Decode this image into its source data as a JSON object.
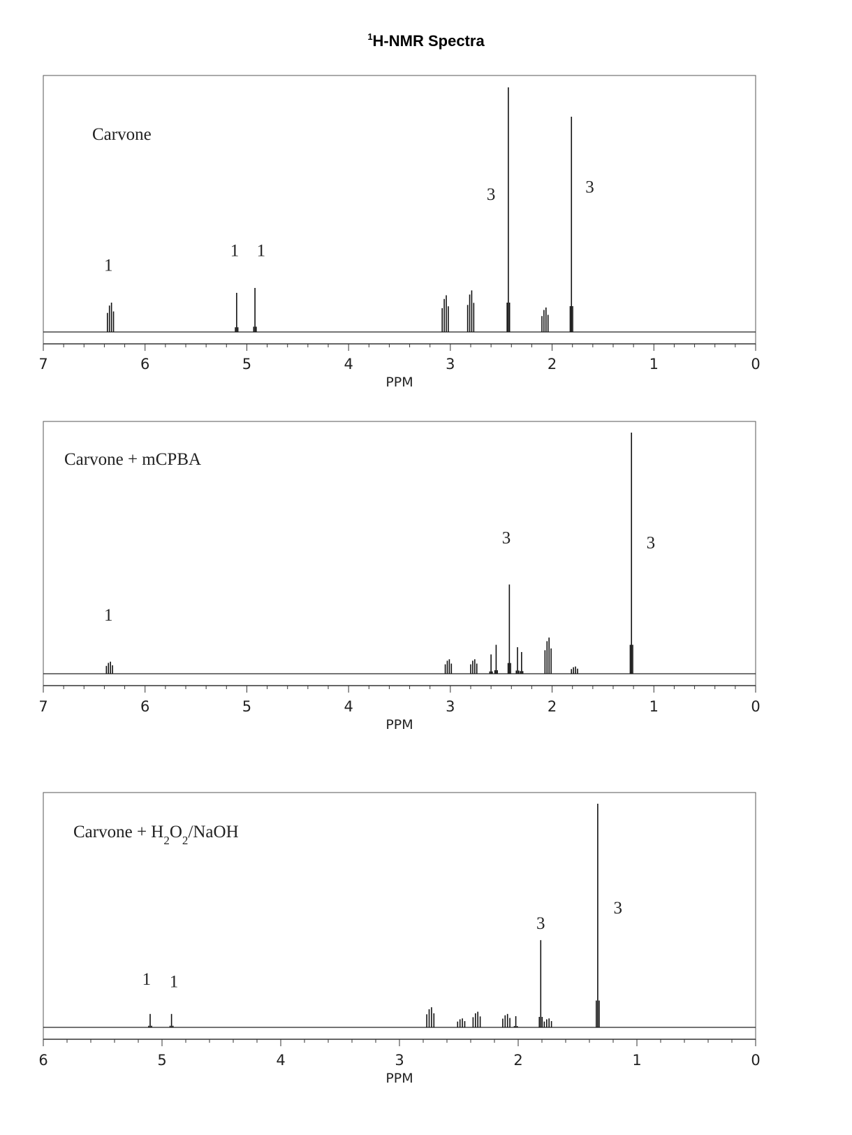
{
  "title": {
    "sup": "1",
    "main": "H-NMR Spectra"
  },
  "chart_data": [
    {
      "type": "line",
      "label": "Carvone",
      "label_subs": [],
      "xlabel": "PPM",
      "xlim": [
        7,
        0
      ],
      "ticks": [
        "7",
        "6",
        "5",
        "4",
        "3",
        "2",
        "1",
        "0"
      ],
      "tick_values": [
        7,
        6,
        5,
        4,
        3,
        2,
        1,
        0
      ],
      "peaks": [
        {
          "ppm": 6.34,
          "height": 0.12,
          "type": "m"
        },
        {
          "ppm": 5.1,
          "height": 0.16,
          "type": "s"
        },
        {
          "ppm": 4.92,
          "height": 0.18,
          "type": "s"
        },
        {
          "ppm": 3.05,
          "height": 0.15,
          "type": "m"
        },
        {
          "ppm": 2.8,
          "height": 0.17,
          "type": "m"
        },
        {
          "ppm": 2.43,
          "height": 1.0,
          "type": "s"
        },
        {
          "ppm": 2.07,
          "height": 0.1,
          "type": "m"
        },
        {
          "ppm": 1.81,
          "height": 0.88,
          "type": "s"
        }
      ],
      "integrations": [
        {
          "ppm": 6.36,
          "level": 0.25,
          "text": "1"
        },
        {
          "ppm": 5.12,
          "level": 0.31,
          "text": "1"
        },
        {
          "ppm": 4.86,
          "level": 0.31,
          "text": "1"
        },
        {
          "ppm": 2.6,
          "level": 0.54,
          "text": "3"
        },
        {
          "ppm": 1.63,
          "level": 0.57,
          "text": "3"
        }
      ]
    },
    {
      "type": "line",
      "label": "Carvone + mCPBA",
      "label_subs": [],
      "xlabel": "PPM",
      "xlim": [
        7,
        0
      ],
      "ticks": [
        "7",
        "6",
        "5",
        "4",
        "3",
        "2",
        "1",
        "0"
      ],
      "tick_values": [
        7,
        6,
        5,
        4,
        3,
        2,
        1,
        0
      ],
      "peaks": [
        {
          "ppm": 6.35,
          "height": 0.05,
          "type": "m"
        },
        {
          "ppm": 3.02,
          "height": 0.06,
          "type": "m"
        },
        {
          "ppm": 2.77,
          "height": 0.06,
          "type": "m"
        },
        {
          "ppm": 2.6,
          "height": 0.08,
          "type": "s"
        },
        {
          "ppm": 2.55,
          "height": 0.12,
          "type": "s"
        },
        {
          "ppm": 2.42,
          "height": 0.37,
          "type": "s"
        },
        {
          "ppm": 2.34,
          "height": 0.11,
          "type": "s"
        },
        {
          "ppm": 2.3,
          "height": 0.09,
          "type": "s"
        },
        {
          "ppm": 2.04,
          "height": 0.15,
          "type": "m"
        },
        {
          "ppm": 1.78,
          "height": 0.03,
          "type": "m"
        },
        {
          "ppm": 1.22,
          "height": 1.0,
          "type": "s"
        }
      ],
      "integrations": [
        {
          "ppm": 6.36,
          "level": 0.22,
          "text": "1"
        },
        {
          "ppm": 2.45,
          "level": 0.54,
          "text": "3"
        },
        {
          "ppm": 1.03,
          "level": 0.52,
          "text": "3"
        }
      ]
    },
    {
      "type": "line",
      "label": "Carvone + H2O2/NaOH",
      "label_parts": [
        {
          "t": "Carvone + H",
          "sub": false
        },
        {
          "t": "2",
          "sub": true
        },
        {
          "t": "O",
          "sub": false
        },
        {
          "t": "2",
          "sub": true
        },
        {
          "t": "/NaOH",
          "sub": false
        }
      ],
      "xlabel": "PPM",
      "xlim": [
        6,
        0
      ],
      "ticks": [
        "6",
        "5",
        "4",
        "3",
        "2",
        "1",
        "0"
      ],
      "tick_values": [
        6,
        5,
        4,
        3,
        2,
        1,
        0
      ],
      "peaks": [
        {
          "ppm": 5.1,
          "height": 0.06,
          "type": "s"
        },
        {
          "ppm": 4.92,
          "height": 0.06,
          "type": "s"
        },
        {
          "ppm": 2.74,
          "height": 0.09,
          "type": "m"
        },
        {
          "ppm": 2.48,
          "height": 0.04,
          "type": "m"
        },
        {
          "ppm": 2.35,
          "height": 0.07,
          "type": "m"
        },
        {
          "ppm": 2.1,
          "height": 0.06,
          "type": "m"
        },
        {
          "ppm": 2.02,
          "height": 0.05,
          "type": "s"
        },
        {
          "ppm": 1.81,
          "height": 0.39,
          "type": "s"
        },
        {
          "ppm": 1.75,
          "height": 0.04,
          "type": "m"
        },
        {
          "ppm": 1.33,
          "height": 1.0,
          "type": "s"
        }
      ],
      "integrations": [
        {
          "ppm": 5.13,
          "level": 0.19,
          "text": "1"
        },
        {
          "ppm": 4.9,
          "level": 0.18,
          "text": "1"
        },
        {
          "ppm": 1.81,
          "level": 0.44,
          "text": "3"
        },
        {
          "ppm": 1.16,
          "level": 0.51,
          "text": "3"
        }
      ]
    }
  ]
}
